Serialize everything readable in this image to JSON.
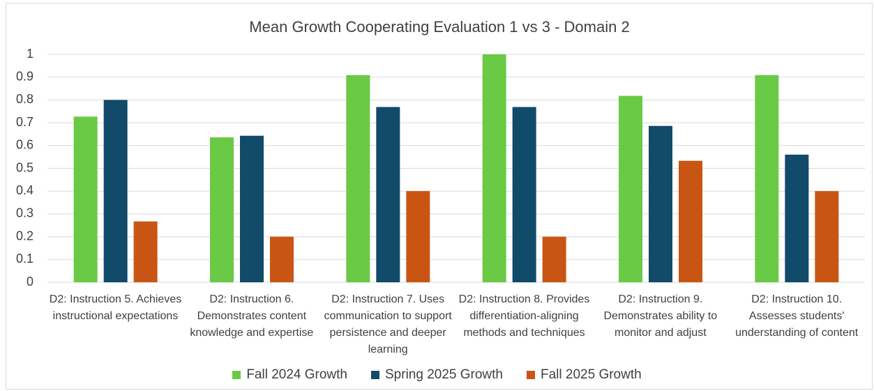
{
  "chart_data": {
    "type": "bar",
    "title": "Mean Growth Cooperating Evaluation 1 vs 3 - Domain 2",
    "categories": [
      "D2: Instruction 5. Achieves instructional expectations",
      "D2: Instruction 6. Demonstrates content knowledge and expertise",
      "D2: Instruction 7.  Uses communication to support persistence and deeper learning",
      "D2: Instruction 8. Provides differentiation-aligning methods and techniques",
      "D2: Instruction 9. Demonstrates ability to monitor and adjust",
      "D2: Instruction 10. Assesses students' understanding of content"
    ],
    "series": [
      {
        "name": "Fall 2024 Growth",
        "color": "#6aca46",
        "values": [
          0.727,
          0.636,
          0.909,
          1.0,
          0.818,
          0.909
        ]
      },
      {
        "name": "Spring 2025 Growth",
        "color": "#124a69",
        "values": [
          0.8,
          0.643,
          0.769,
          0.769,
          0.686,
          0.56
        ]
      },
      {
        "name": "Fall 2025 Growth",
        "color": "#c95514",
        "values": [
          0.267,
          0.2,
          0.4,
          0.2,
          0.533,
          0.4
        ]
      }
    ],
    "ylim": [
      0,
      1
    ],
    "yticks": [
      0,
      0.1,
      0.2,
      0.3,
      0.4,
      0.5,
      0.6,
      0.7,
      0.8,
      0.9,
      1
    ],
    "grid": true,
    "legend": "bottom"
  }
}
